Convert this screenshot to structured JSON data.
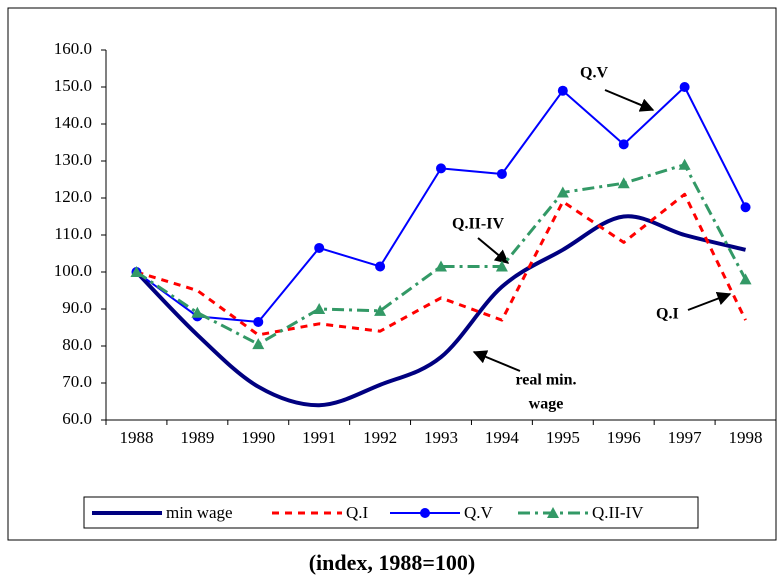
{
  "chart_data": {
    "type": "line",
    "caption": "(index, 1988=100)",
    "categories": [
      "1988",
      "1989",
      "1990",
      "1991",
      "1992",
      "1993",
      "1994",
      "1995",
      "1996",
      "1997",
      "1998"
    ],
    "series": [
      {
        "name": "min wage",
        "color": "#000080",
        "values": [
          100,
          83,
          69,
          64,
          69.5,
          77,
          96,
          106,
          115,
          110,
          106
        ]
      },
      {
        "name": "Q.I",
        "color": "#ff0000",
        "values": [
          100,
          95,
          83,
          86,
          84,
          93,
          87,
          119,
          108,
          121,
          87
        ]
      },
      {
        "name": "Q.V",
        "color": "#0000ff",
        "values": [
          100,
          88,
          86.5,
          106.5,
          101.5,
          128,
          126.5,
          149,
          134.5,
          150,
          117.5
        ]
      },
      {
        "name": "Q.II-IV",
        "color": "#339966",
        "values": [
          100,
          89,
          80.5,
          90,
          89.5,
          101.5,
          101.5,
          121.5,
          124,
          129,
          98
        ]
      }
    ],
    "ylim": [
      60,
      160
    ],
    "yticks": [
      {
        "value": 60,
        "label": "60.0"
      },
      {
        "value": 70,
        "label": "70.0"
      },
      {
        "value": 80,
        "label": "80.0"
      },
      {
        "value": 90,
        "label": "90.0"
      },
      {
        "value": 100,
        "label": "100.0"
      },
      {
        "value": 110,
        "label": "110.0"
      },
      {
        "value": 120,
        "label": "120.0"
      },
      {
        "value": 130,
        "label": "130.0"
      },
      {
        "value": 140,
        "label": "140.0"
      },
      {
        "value": 150,
        "label": "150.0"
      },
      {
        "value": 160,
        "label": "160.0"
      }
    ],
    "annotations": [
      "Q.V",
      "Q.II-IV",
      "Q.I",
      "real min.",
      "wage"
    ]
  }
}
